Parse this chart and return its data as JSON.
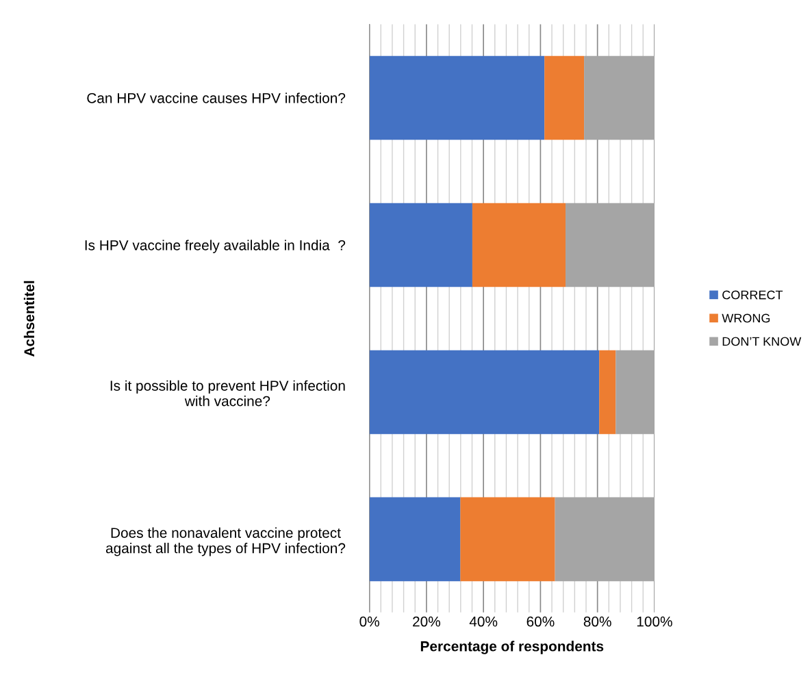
{
  "chart_data": {
    "type": "bar",
    "orientation": "horizontal",
    "stacked": true,
    "xlabel": "Percentage of respondents",
    "ylabel": "Achsentitel",
    "categories": [
      "Can HPV vaccine causes HPV infection?",
      "Is HPV vaccine freely available in India  ?",
      "Is it possible to prevent HPV infection\nwith vaccine?",
      "Does the nonavalent vaccine protect\nagainst all the types of HPV infection?"
    ],
    "series": [
      {
        "name": "CORRECT",
        "color": "#4472c4",
        "values": [
          61.4,
          36.1,
          80.6,
          31.9
        ]
      },
      {
        "name": "WRONG",
        "color": "#ed7d31",
        "values": [
          13.9,
          32.7,
          5.8,
          33.2
        ]
      },
      {
        "name": "DON’T KNOW",
        "color": "#a5a5a5",
        "values": [
          24.7,
          31.2,
          13.6,
          34.9
        ]
      }
    ],
    "xlim": [
      0,
      100
    ],
    "xticks": [
      {
        "value": 0,
        "label": "0%"
      },
      {
        "value": 4,
        "label": null
      },
      {
        "value": 8,
        "label": null
      },
      {
        "value": 12,
        "label": null
      },
      {
        "value": 16,
        "label": null
      },
      {
        "value": 20,
        "label": "20%"
      },
      {
        "value": 24,
        "label": null
      },
      {
        "value": 28,
        "label": null
      },
      {
        "value": 32,
        "label": null
      },
      {
        "value": 36,
        "label": null
      },
      {
        "value": 40,
        "label": "40%"
      },
      {
        "value": 44,
        "label": null
      },
      {
        "value": 48,
        "label": null
      },
      {
        "value": 52,
        "label": null
      },
      {
        "value": 56,
        "label": null
      },
      {
        "value": 60,
        "label": "60%"
      },
      {
        "value": 64,
        "label": null
      },
      {
        "value": 68,
        "label": null
      },
      {
        "value": 72,
        "label": null
      },
      {
        "value": 76,
        "label": null
      },
      {
        "value": 80,
        "label": "80%"
      },
      {
        "value": 84,
        "label": null
      },
      {
        "value": 88,
        "label": null
      },
      {
        "value": 92,
        "label": null
      },
      {
        "value": 96,
        "label": null
      },
      {
        "value": 100,
        "label": "100%"
      }
    ],
    "grid": "x",
    "legend": "right"
  }
}
